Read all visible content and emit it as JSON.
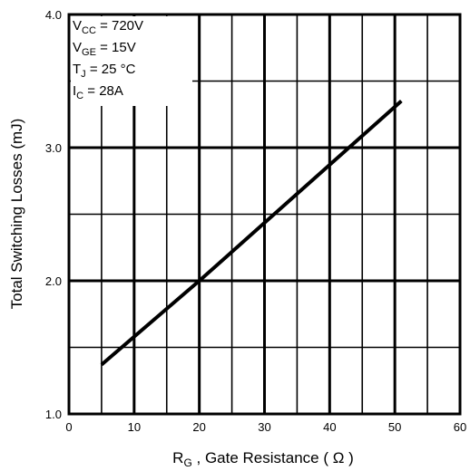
{
  "chart_data": {
    "type": "line",
    "xlabel": "R_G , Gate Resistance ( Ω )",
    "xlabel_parts": {
      "main": "R",
      "sub": "G",
      "rest": " , Gate Resistance ( Ω )"
    },
    "ylabel": "Total Switching Losses (mJ)",
    "xlim": [
      0,
      60
    ],
    "ylim": [
      1.0,
      4.0
    ],
    "x_ticks": [
      0,
      10,
      20,
      30,
      40,
      50,
      60
    ],
    "y_ticks": [
      1.0,
      2.0,
      3.0,
      4.0
    ],
    "x_tick_labels": [
      "0",
      "10",
      "20",
      "30",
      "40",
      "50",
      "60"
    ],
    "y_tick_labels": [
      "1.0",
      "2.0",
      "3.0",
      "4.0"
    ],
    "grid": true,
    "series": [
      {
        "x": [
          5,
          20,
          51
        ],
        "y": [
          1.37,
          2.0,
          3.35
        ]
      }
    ],
    "annotations": [
      {
        "main": "V",
        "sub": "CC",
        "rest": " = 720V"
      },
      {
        "main": "V",
        "sub": "GE",
        "rest": " = 15V"
      },
      {
        "main": "T",
        "sub": "J",
        "rest": "   = 25  °C"
      },
      {
        "main": " I",
        "sub": "C",
        "rest": "    = 28A"
      }
    ]
  }
}
